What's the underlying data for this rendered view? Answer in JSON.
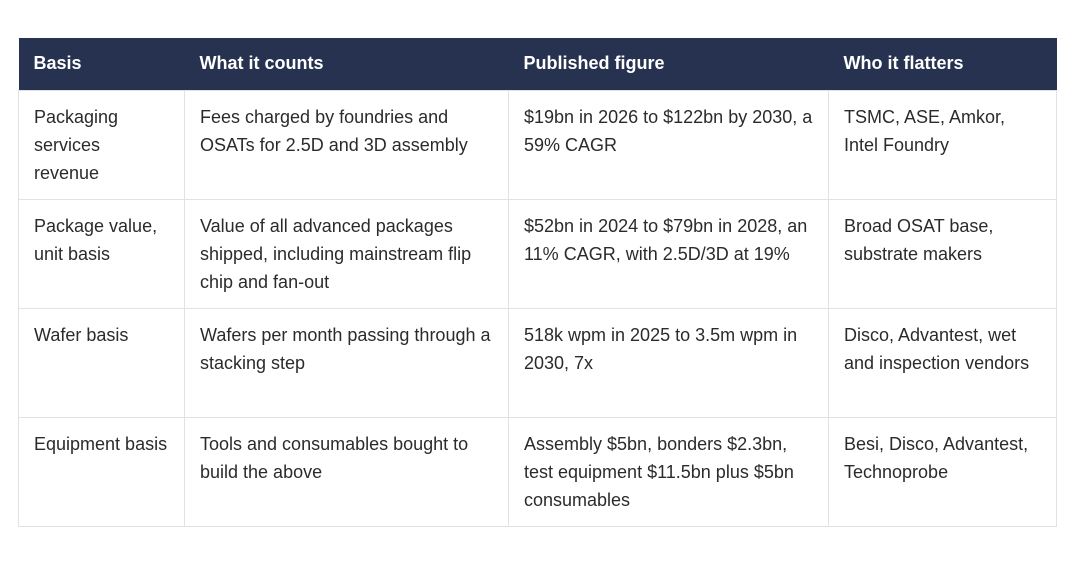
{
  "table": {
    "header": [
      "Basis",
      "What it counts",
      "Published figure",
      "Who it flatters"
    ],
    "rows": [
      [
        "Packaging services revenue",
        "Fees charged by foundries and OSATs for 2.5D and 3D assembly",
        "$19bn in 2026 to $122bn by 2030, a 59% CAGR",
        "TSMC, ASE, Amkor, Intel Foundry"
      ],
      [
        "Package value, unit basis",
        "Value of all advanced packages shipped, including mainstream flip chip and fan-out",
        "$52bn in 2024 to $79bn in 2028, an 11% CAGR, with 2.5D/3D at 19%",
        "Broad OSAT base, substrate makers"
      ],
      [
        "Wafer basis",
        "Wafers per month passing through a stacking step",
        "518k wpm in 2025 to 3.5m wpm in 2030, 7x",
        "Disco, Advantest, wet and inspection vendors"
      ],
      [
        "Equipment basis",
        "Tools and consumables bought to build the above",
        "Assembly $5bn, bonders $2.3bn, test equipment $11.5bn plus $5bn consumables",
        "Besi, Disco, Advantest, Technoprobe"
      ]
    ]
  }
}
